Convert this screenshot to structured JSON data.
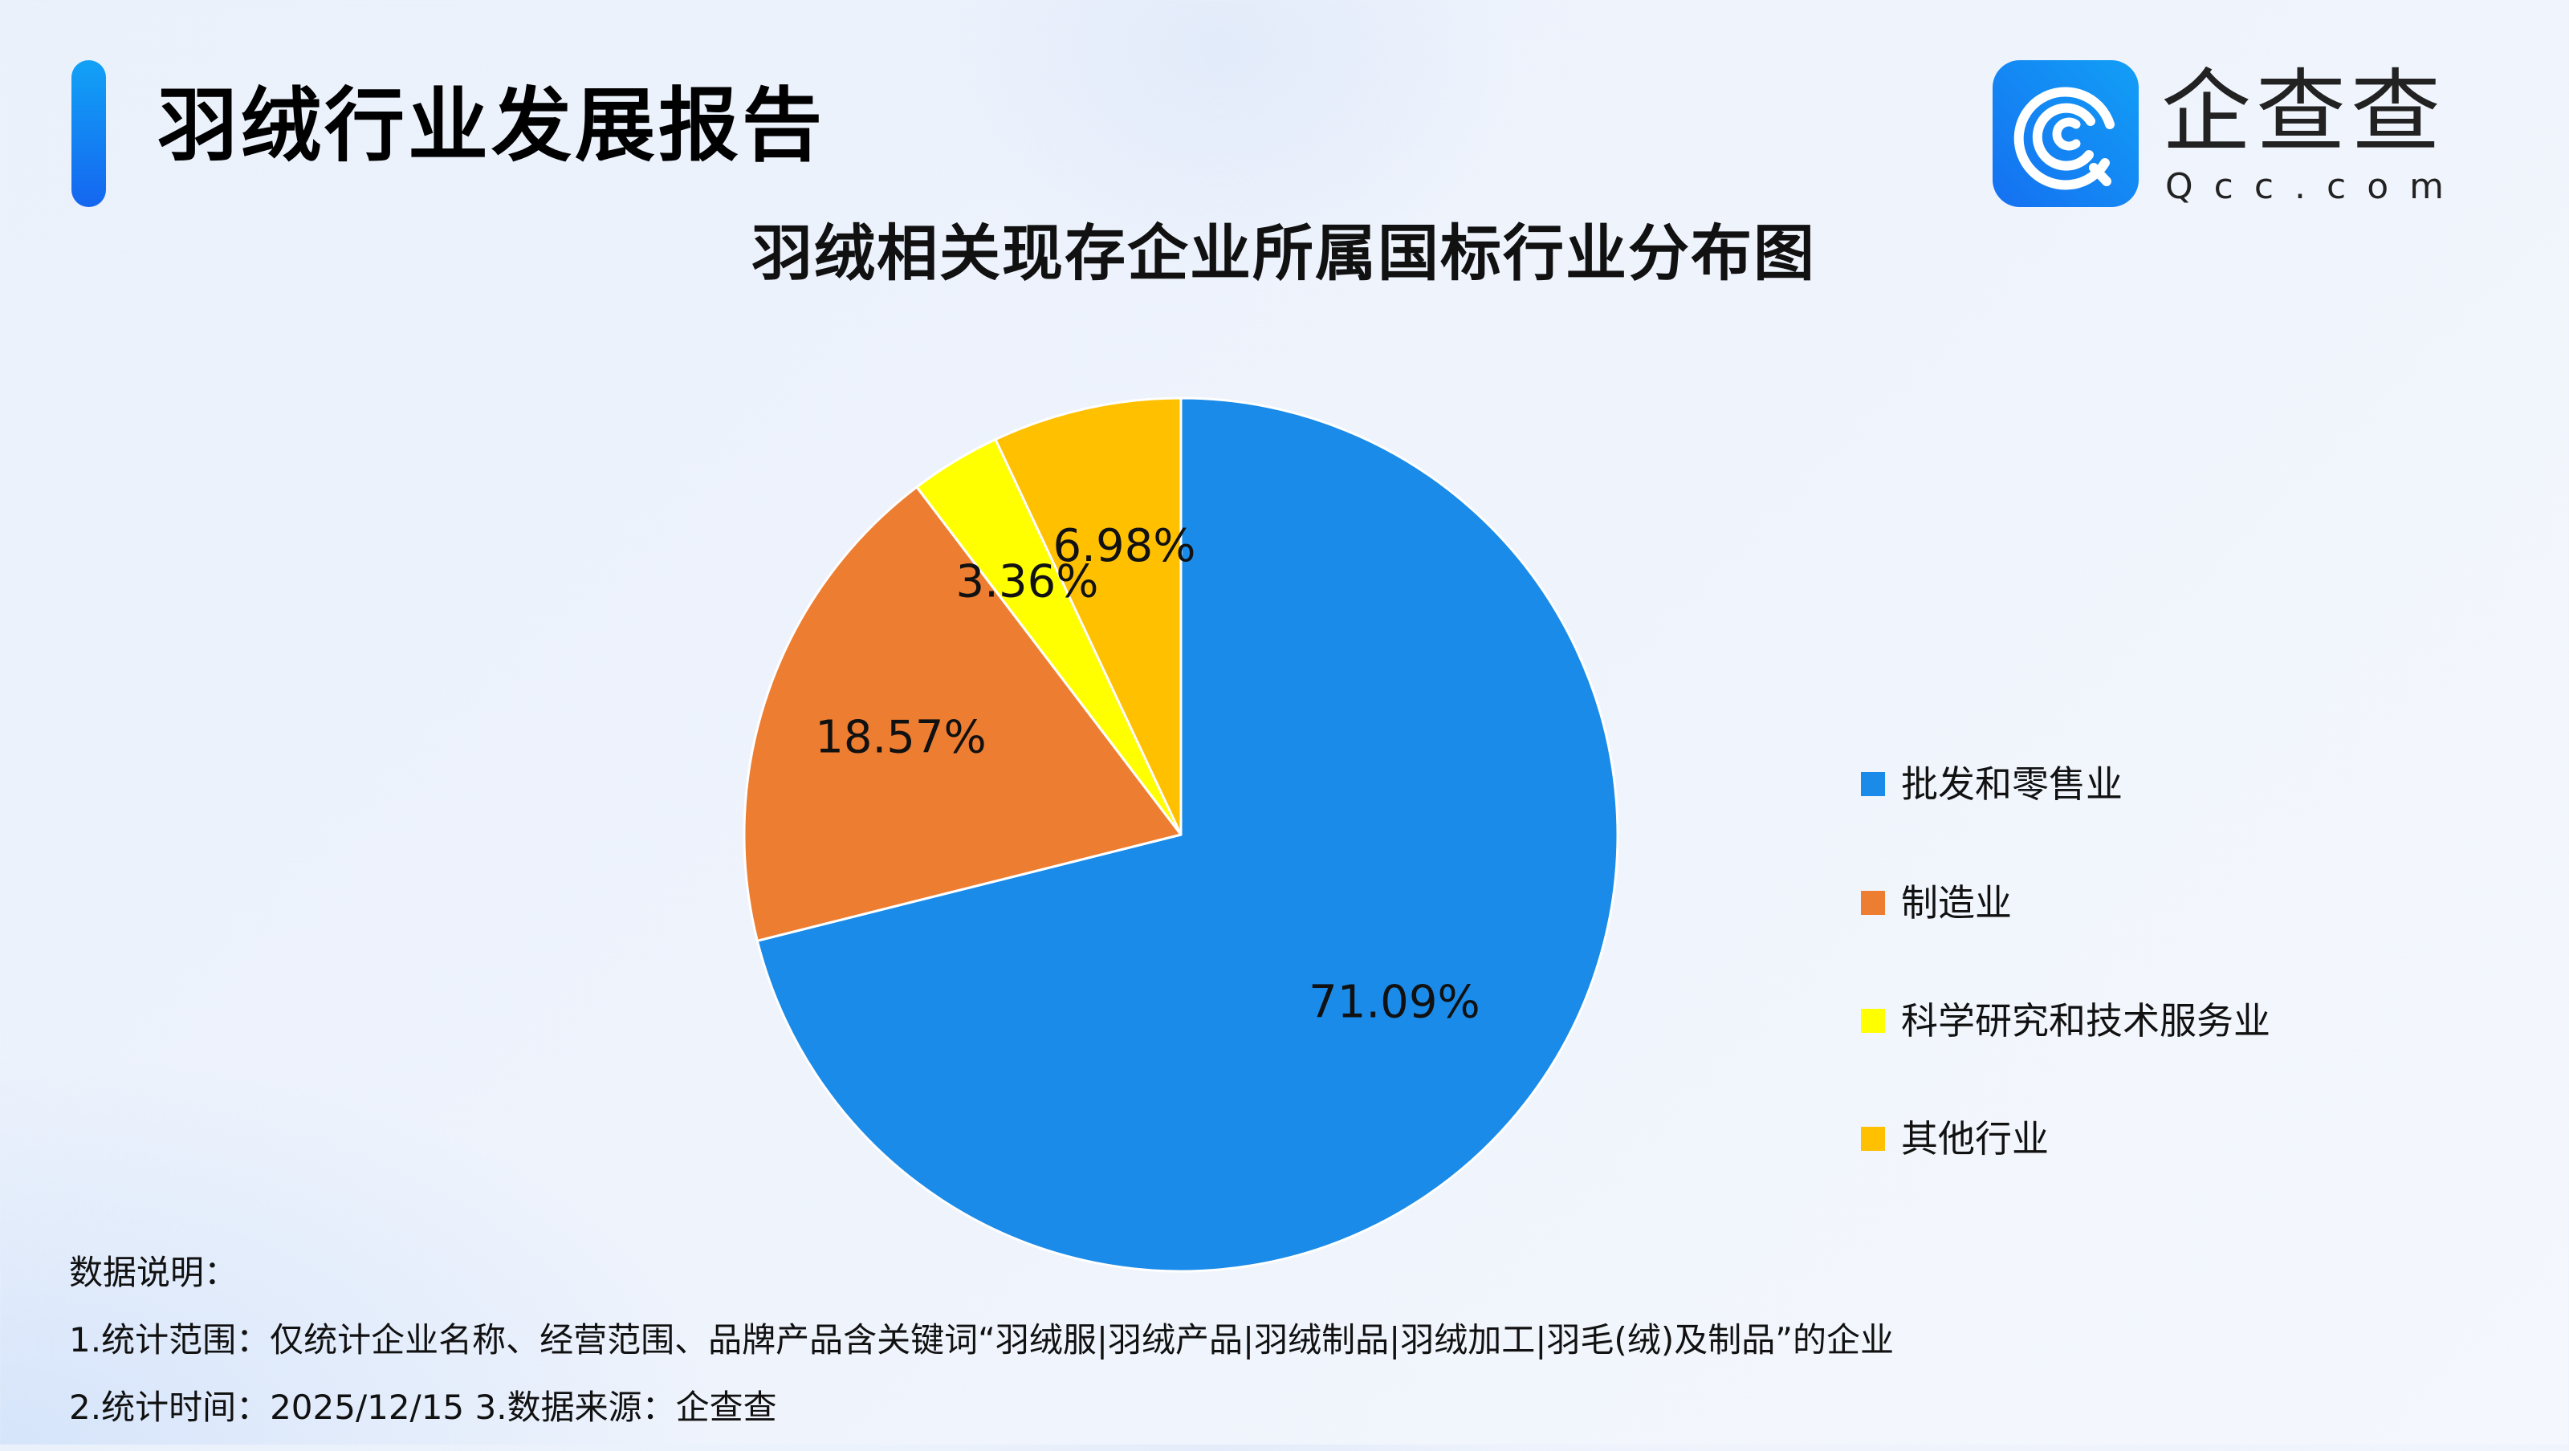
{
  "header": {
    "report_title": "羽绒行业发展报告",
    "accent_color": "#1478f2"
  },
  "logo": {
    "icon": "qcc-logo-icon",
    "name_cn": "企查查",
    "name_en": "Qcc.com",
    "brand_color": "#1585f3"
  },
  "chart_data": {
    "type": "pie",
    "title": "羽绒相关现存企业所属国标行业分布图",
    "categories": [
      "批发和零售业",
      "制造业",
      "科学研究和技术服务业",
      "其他行业"
    ],
    "values": [
      71.09,
      18.57,
      3.36,
      6.98
    ],
    "labels": [
      "71.09%",
      "18.57%",
      "3.36%",
      "6.98%"
    ],
    "colors": [
      "#1a8be9",
      "#ed7d31",
      "#ffff00",
      "#ffc000"
    ],
    "start_angle": "12 o'clock",
    "direction": "clockwise",
    "legend_position": "right",
    "unit": "%"
  },
  "legend": {
    "items": [
      {
        "label": "批发和零售业",
        "color": "#1a8be9"
      },
      {
        "label": "制造业",
        "color": "#ed7d31"
      },
      {
        "label": "科学研究和技术服务业",
        "color": "#ffff00"
      },
      {
        "label": "其他行业",
        "color": "#ffc000"
      }
    ]
  },
  "notes": {
    "heading": "数据说明：",
    "line1": "1.统计范围：仅统计企业名称、经营范围、品牌产品含关键词“羽绒服|羽绒产品|羽绒制品|羽绒加工|羽毛(绒)及制品”的企业",
    "line2": "2.统计时间：2025/12/15  3.数据来源：企查查"
  }
}
